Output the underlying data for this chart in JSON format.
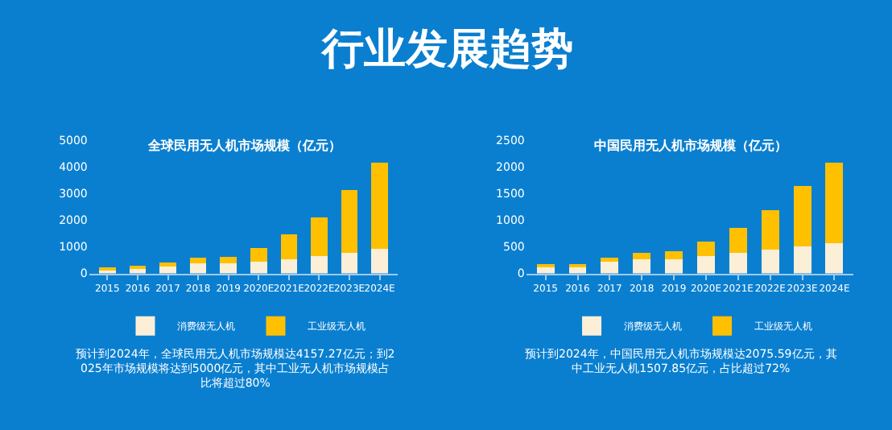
{
  "chart_data": [
    {
      "type": "bar",
      "stacked": true,
      "title": "全球民用无人机市场规模（亿元）",
      "categories": [
        "2015",
        "2016",
        "2017",
        "2018",
        "2019",
        "2020E",
        "2021E",
        "2022E",
        "2023E",
        "2024E"
      ],
      "series": [
        {
          "name": "消费级无人机",
          "color": "#fcefd8",
          "values": [
            150,
            180,
            250,
            370,
            370,
            430,
            540,
            650,
            770,
            920
          ]
        },
        {
          "name": "工业级无人机",
          "color": "#ffc000",
          "values": [
            50,
            90,
            150,
            230,
            260,
            530,
            920,
            1460,
            2340,
            3240
          ]
        }
      ],
      "ylim": [
        0,
        5000
      ],
      "yticks": [
        0,
        1000,
        2000,
        3000,
        4000,
        5000
      ],
      "grid": false,
      "legend": "bottom",
      "annotations": [
        "行业发展趋势",
        "预计到2024年，全球民用无人机市场规模达4157.27亿元；到2025年市场规模将达到5000亿元，其中工业无人机市场规模占比将超过80%"
      ]
    },
    {
      "type": "bar",
      "stacked": true,
      "title": "中国民用无人机市场规模（亿元）",
      "categories": [
        "2015",
        "2016",
        "2017",
        "2018",
        "2019",
        "2020E",
        "2021E",
        "2022E",
        "2023E",
        "2024E"
      ],
      "series": [
        {
          "name": "消费级无人机",
          "color": "#fcefd8",
          "values": [
            120,
            140,
            220,
            270,
            270,
            320,
            380,
            450,
            500,
            570
          ]
        },
        {
          "name": "工业级无人机",
          "color": "#ffc000",
          "values": [
            30,
            40,
            70,
            120,
            150,
            270,
            470,
            730,
            1140,
            1510
          ]
        }
      ],
      "ylim": [
        0,
        2500
      ],
      "yticks": [
        0,
        500,
        1000,
        1500,
        2000,
        2500
      ],
      "grid": false,
      "legend": "bottom",
      "annotations": [
        "预计到2024年，中国民用无人机市场规模达2075.59亿元，其中工业无人机1507.85亿元，占比超过72%"
      ]
    }
  ]
}
